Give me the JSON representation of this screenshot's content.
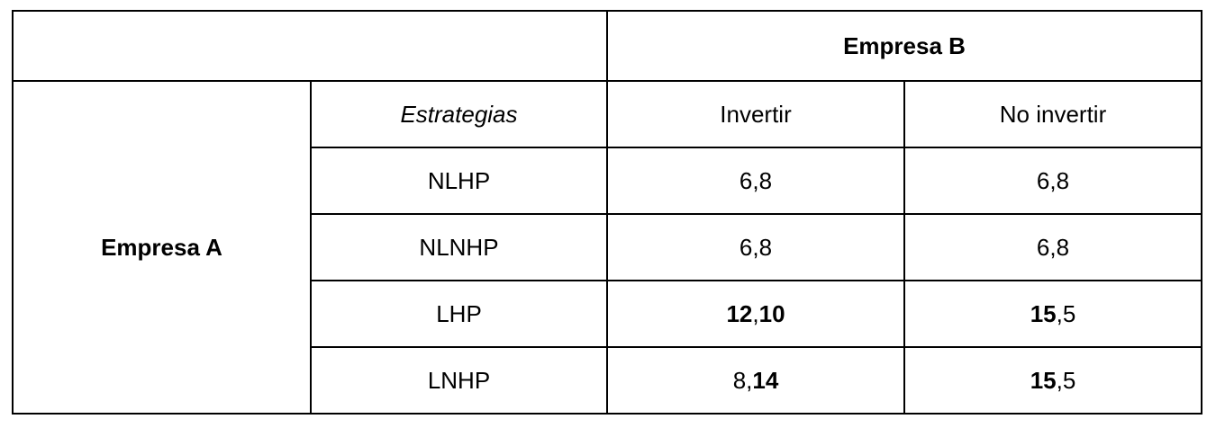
{
  "table": {
    "empresa_b": "Empresa B",
    "empresa_a": "Empresa A",
    "strategies_header": "Estrategias",
    "columns": [
      "Invertir",
      "No invertir"
    ],
    "rows": [
      {
        "strategy": "NLHP",
        "cells": [
          {
            "a": "6",
            "sep": ",",
            "b": "8",
            "a_bold": false,
            "b_bold": false
          },
          {
            "a": "6",
            "sep": ",",
            "b": "8",
            "a_bold": false,
            "b_bold": false
          }
        ]
      },
      {
        "strategy": "NLNHP",
        "cells": [
          {
            "a": "6",
            "sep": ",",
            "b": "8",
            "a_bold": false,
            "b_bold": false
          },
          {
            "a": "6",
            "sep": ",",
            "b": "8",
            "a_bold": false,
            "b_bold": false
          }
        ]
      },
      {
        "strategy": "LHP",
        "cells": [
          {
            "a": "12",
            "sep": ",",
            "b": "10",
            "a_bold": true,
            "b_bold": true
          },
          {
            "a": "15",
            "sep": ",",
            "b": "5",
            "a_bold": true,
            "b_bold": false
          }
        ]
      },
      {
        "strategy": "LNHP",
        "cells": [
          {
            "a": "8",
            "sep": ",",
            "b": "14",
            "a_bold": false,
            "b_bold": true
          },
          {
            "a": "15",
            "sep": ",",
            "b": "5",
            "a_bold": true,
            "b_bold": false
          }
        ]
      }
    ]
  }
}
